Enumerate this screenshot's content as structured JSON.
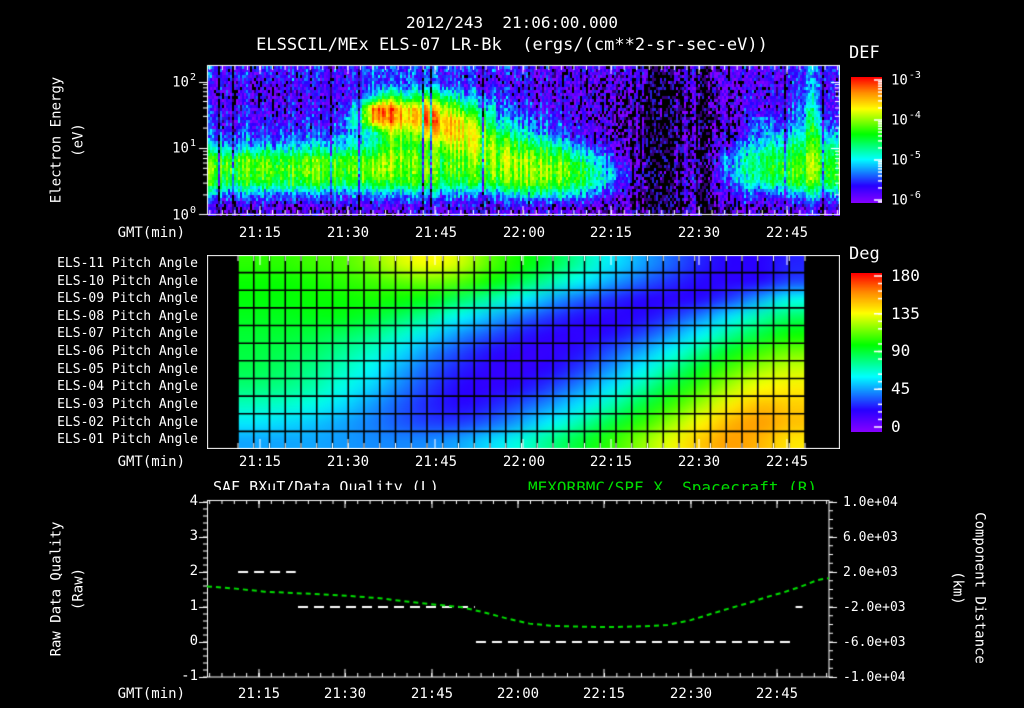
{
  "header": {
    "title_line1": "2012/243  21:06:00.000",
    "title_line2": "ELSSCIL/MEx ELS-07 LR-Bk  (ergs/(cm**2-sr-sec-eV))"
  },
  "time_axis": {
    "label": "GMT(min)",
    "tick_labels": [
      "21:15",
      "21:30",
      "21:45",
      "22:00",
      "22:15",
      "22:30",
      "22:45"
    ],
    "tick_minutes": [
      9,
      24,
      39,
      54,
      69,
      84,
      99
    ],
    "start_label": "21:06",
    "end_label": "22:54",
    "minutes_span": 108
  },
  "colors": {
    "background": "#000000",
    "foreground": "#ffffff",
    "accent_green": "#00dd00",
    "rainbow": {
      "positions": [
        0,
        0.14,
        0.35,
        0.55,
        0.75,
        0.88,
        1
      ],
      "colors": [
        "#8a00ff",
        "#2800ff",
        "#00ffff",
        "#00ff00",
        "#ffff00",
        "#ff8c00",
        "#ff0000"
      ]
    }
  },
  "chart_data": [
    {
      "type": "heatmap",
      "name": "electron-energy-spectrogram",
      "title": "ELSSCIL/MEx ELS-07 LR-Bk  (ergs/(cm**2-sr-sec-eV))",
      "xlabel": "GMT(min)",
      "ylabel_lines": [
        "Electron Energy",
        "(eV)"
      ],
      "y_scale": "log",
      "y_range_ev": [
        1,
        155
      ],
      "y_ticks": [
        {
          "base": "10",
          "exp": "2"
        },
        {
          "base": "10",
          "exp": "1"
        },
        {
          "base": "10",
          "exp": "0"
        }
      ],
      "x_tick_labels": [
        "21:15",
        "21:30",
        "21:45",
        "22:00",
        "22:15",
        "22:30",
        "22:45"
      ],
      "colorbar": {
        "label": "DEF",
        "units": "ergs/(cm**2-sr-sec-eV)",
        "log10_range": [
          -6,
          -3
        ],
        "ticks": [
          {
            "base": "10",
            "exp": "-3"
          },
          {
            "base": "10",
            "exp": "-4"
          },
          {
            "base": "10",
            "exp": "-5"
          },
          {
            "base": "10",
            "exp": "-6"
          }
        ]
      },
      "grid": {
        "time_bin_minutes": 3,
        "t0_label": "21:06",
        "energy_bins": "12 log-spaced bins, 1 eV (bottom) to 150 eV (top)",
        "columns_bottom_to_top_log10_flux": [
          [
            -5.9,
            -5.3,
            -4.4,
            -4.15,
            -4.3,
            -5.1,
            -5.5,
            -5.65,
            -5.75,
            -5.85,
            -5.75,
            -5.6
          ],
          [
            -5.95,
            -5.3,
            -4.45,
            -4.2,
            -4.3,
            -5.15,
            -5.5,
            -5.6,
            -5.7,
            -5.8,
            -5.7,
            -5.6
          ],
          [
            -5.9,
            -5.25,
            -4.4,
            -4.15,
            -4.25,
            -5.1,
            -5.45,
            -5.6,
            -5.75,
            -5.8,
            -5.75,
            -5.65
          ],
          [
            -5.9,
            -5.3,
            -4.4,
            -4.1,
            -4.25,
            -5.05,
            -5.5,
            -5.65,
            -5.7,
            -5.85,
            -5.7,
            -5.55
          ],
          [
            -5.95,
            -5.35,
            -4.45,
            -4.15,
            -4.3,
            -5.1,
            -5.4,
            -5.55,
            -5.7,
            -5.8,
            -5.75,
            -5.6
          ],
          [
            -5.9,
            -5.3,
            -4.4,
            -4.1,
            -4.25,
            -5.0,
            -5.45,
            -5.6,
            -5.75,
            -5.85,
            -5.7,
            -5.6
          ],
          [
            -5.9,
            -5.25,
            -4.35,
            -4.1,
            -4.2,
            -5.0,
            -5.4,
            -5.6,
            -5.7,
            -5.8,
            -5.7,
            -5.55
          ],
          [
            -5.9,
            -5.3,
            -4.4,
            -4.15,
            -4.25,
            -4.95,
            -5.35,
            -5.5,
            -5.65,
            -5.75,
            -5.7,
            -5.6
          ],
          [
            -5.9,
            -5.3,
            -4.4,
            -4.1,
            -4.2,
            -4.8,
            -5.0,
            -4.7,
            -4.9,
            -5.5,
            -5.6,
            -5.5
          ],
          [
            -5.9,
            -5.3,
            -4.4,
            -4.1,
            -4.2,
            -4.8,
            -5.0,
            -3.6,
            -3.3,
            -4.9,
            -5.6,
            -5.5
          ],
          [
            -5.9,
            -5.2,
            -4.3,
            -4.0,
            -3.9,
            -4.1,
            -3.9,
            -3.3,
            -3.15,
            -4.2,
            -5.3,
            -5.4
          ],
          [
            -5.9,
            -5.3,
            -4.4,
            -4.2,
            -4.2,
            -4.5,
            -4.3,
            -3.8,
            -3.8,
            -4.8,
            -5.5,
            -5.5
          ],
          [
            -5.9,
            -5.3,
            -4.4,
            -4.2,
            -4.3,
            -4.4,
            -3.8,
            -3.3,
            -3.4,
            -4.3,
            -5.4,
            -5.5
          ],
          [
            -5.9,
            -5.3,
            -4.5,
            -4.3,
            -4.3,
            -4.0,
            -3.6,
            -3.5,
            -3.9,
            -4.6,
            -5.5,
            -5.5
          ],
          [
            -5.9,
            -5.4,
            -4.5,
            -4.3,
            -4.2,
            -3.9,
            -3.7,
            -3.8,
            -4.3,
            -5.0,
            -5.6,
            -5.6
          ],
          [
            -5.9,
            -5.4,
            -4.4,
            -4.2,
            -4.0,
            -3.9,
            -3.9,
            -4.2,
            -4.8,
            -5.3,
            -5.7,
            -5.6
          ],
          [
            -5.9,
            -5.3,
            -4.3,
            -4.1,
            -4.0,
            -4.1,
            -4.4,
            -4.9,
            -5.2,
            -5.5,
            -5.7,
            -5.7
          ],
          [
            -5.9,
            -5.1,
            -4.2,
            -4.0,
            -4.0,
            -4.3,
            -4.8,
            -5.2,
            -5.5,
            -5.7,
            -5.8,
            -5.7
          ],
          [
            -5.9,
            -4.8,
            -4.1,
            -4.0,
            -4.05,
            -4.4,
            -5.0,
            -5.4,
            -5.6,
            -5.8,
            -5.8,
            -5.8
          ],
          [
            -5.9,
            -4.9,
            -4.15,
            -4.0,
            -4.1,
            -4.6,
            -5.2,
            -5.5,
            -5.7,
            -5.8,
            -5.9,
            -5.8
          ],
          [
            -6.0,
            -5.1,
            -4.3,
            -4.2,
            -4.4,
            -5.0,
            -5.5,
            -5.7,
            -5.8,
            -5.9,
            -5.9,
            -5.9
          ],
          [
            -6.0,
            -5.3,
            -4.6,
            -4.5,
            -4.8,
            -5.4,
            -5.8,
            -5.9,
            -5.9,
            -6.0,
            -6.0,
            -5.9
          ],
          [
            -6.1,
            -5.6,
            -5.0,
            -4.9,
            -5.2,
            -5.7,
            -6.0,
            -6.0,
            -6.0,
            -6.1,
            -6.0,
            -5.8
          ],
          [
            -6.1,
            -5.9,
            -5.6,
            -5.5,
            -5.8,
            -6.0,
            -6.1,
            -6.1,
            -6.1,
            -6.1,
            -6.1,
            -5.9
          ],
          [
            -6.2,
            -6.1,
            -6.0,
            -6.0,
            -6.1,
            -6.1,
            -6.2,
            -6.2,
            -6.2,
            -6.2,
            -5.9,
            -5.9
          ],
          [
            -6.5,
            -6.5,
            -6.4,
            -6.4,
            -6.5,
            -6.5,
            -6.5,
            -6.5,
            -6.5,
            -6.5,
            -6.4,
            -6.3
          ],
          [
            -6.5,
            -6.5,
            -6.5,
            -6.4,
            -6.5,
            -6.5,
            -6.5,
            -6.5,
            -6.5,
            -6.5,
            -6.4,
            -6.2
          ],
          [
            -6.1,
            -6.0,
            -5.9,
            -5.9,
            -6.0,
            -6.0,
            -6.1,
            -6.1,
            -6.1,
            -6.1,
            -6.0,
            -5.9
          ],
          [
            -6.4,
            -6.4,
            -6.3,
            -6.3,
            -6.4,
            -6.4,
            -6.4,
            -6.4,
            -6.4,
            -6.4,
            -6.3,
            -6.2
          ],
          [
            -6.1,
            -5.9,
            -5.6,
            -5.4,
            -5.3,
            -5.8,
            -6.0,
            -6.0,
            -6.0,
            -6.0,
            -5.9,
            -5.9
          ],
          [
            -6.0,
            -5.6,
            -5.0,
            -4.8,
            -4.9,
            -5.2,
            -5.7,
            -5.9,
            -5.9,
            -5.9,
            -5.9,
            -5.8
          ],
          [
            -6.0,
            -5.5,
            -4.7,
            -4.5,
            -4.6,
            -4.9,
            -5.3,
            -5.3,
            -5.7,
            -5.8,
            -5.8,
            -5.8
          ],
          [
            -5.9,
            -5.4,
            -4.5,
            -4.3,
            -4.4,
            -4.7,
            -5.1,
            -5.4,
            -5.6,
            -5.7,
            -5.7,
            -5.7
          ],
          [
            -5.9,
            -5.3,
            -4.4,
            -4.2,
            -4.3,
            -4.6,
            -5.0,
            -5.3,
            -5.5,
            -5.6,
            -5.6,
            -5.6
          ],
          [
            -5.8,
            -5.0,
            -4.2,
            -4.0,
            -4.0,
            -4.2,
            -4.4,
            -4.6,
            -4.8,
            -5.0,
            -5.2,
            -5.3
          ],
          [
            -5.9,
            -5.2,
            -4.4,
            -4.3,
            -4.4,
            -4.7,
            -5.1,
            -5.5,
            -5.7,
            -5.7,
            -5.7,
            -5.6
          ]
        ]
      }
    },
    {
      "type": "heatmap",
      "name": "pitch-angle-panel",
      "xlabel": "GMT(min)",
      "rows_top_to_bottom": [
        "ELS-11 Pitch Angle",
        "ELS-10 Pitch Angle",
        "ELS-09 Pitch Angle",
        "ELS-08 Pitch Angle",
        "ELS-07 Pitch Angle",
        "ELS-06 Pitch Angle",
        "ELS-05 Pitch Angle",
        "ELS-04 Pitch Angle",
        "ELS-03 Pitch Angle",
        "ELS-02 Pitch Angle",
        "ELS-01 Pitch Angle"
      ],
      "x_tick_labels": [
        "21:15",
        "21:30",
        "21:45",
        "22:00",
        "22:15",
        "22:30",
        "22:45"
      ],
      "colorbar": {
        "label": "Deg",
        "ticks": [
          180,
          135,
          90,
          45,
          0
        ],
        "range_deg": [
          0,
          180
        ]
      },
      "grid": {
        "time_bins": 19,
        "coverage": "21:11 to 22:48, right edge 22:48-22:54 has no data (black)",
        "deg_rows_top_to_bottom": [
          [
            105,
            105,
            108,
            110,
            118,
            130,
            135,
            128,
            110,
            100,
            90,
            75,
            60,
            50,
            40,
            30,
            25,
            25,
            30
          ],
          [
            100,
            100,
            102,
            105,
            108,
            112,
            115,
            110,
            100,
            88,
            75,
            62,
            50,
            40,
            32,
            26,
            24,
            26,
            35
          ],
          [
            98,
            98,
            100,
            100,
            102,
            100,
            95,
            85,
            75,
            62,
            50,
            40,
            32,
            26,
            24,
            26,
            35,
            50,
            65
          ],
          [
            95,
            95,
            96,
            96,
            92,
            85,
            75,
            62,
            52,
            42,
            33,
            27,
            24,
            26,
            33,
            45,
            60,
            75,
            85
          ],
          [
            92,
            92,
            90,
            86,
            80,
            70,
            58,
            46,
            37,
            29,
            24,
            23,
            27,
            35,
            48,
            62,
            78,
            90,
            100
          ],
          [
            90,
            88,
            85,
            78,
            70,
            58,
            45,
            35,
            27,
            22,
            22,
            28,
            38,
            50,
            64,
            80,
            95,
            108,
            115
          ],
          [
            88,
            85,
            80,
            72,
            62,
            50,
            38,
            29,
            23,
            22,
            26,
            35,
            48,
            62,
            78,
            95,
            110,
            122,
            128
          ],
          [
            82,
            80,
            75,
            66,
            56,
            44,
            33,
            25,
            23,
            27,
            35,
            47,
            60,
            75,
            92,
            108,
            124,
            135,
            138
          ],
          [
            72,
            70,
            66,
            58,
            48,
            38,
            30,
            26,
            30,
            38,
            48,
            60,
            74,
            90,
            106,
            122,
            138,
            148,
            145
          ],
          [
            60,
            58,
            55,
            50,
            44,
            38,
            34,
            34,
            40,
            50,
            62,
            75,
            90,
            105,
            120,
            136,
            150,
            155,
            148
          ],
          [
            50,
            50,
            50,
            48,
            46,
            45,
            46,
            50,
            58,
            68,
            80,
            92,
            105,
            118,
            132,
            146,
            155,
            150,
            140
          ]
        ]
      }
    },
    {
      "type": "line",
      "name": "quality-and-distance-plot",
      "left_title": "SAF_BXuT/Data Quality (L)",
      "right_title": "MEXORBMC/SPF X, Spacecraft (R)",
      "xlabel": "GMT(min)",
      "x_tick_labels": [
        "21:15",
        "21:30",
        "21:45",
        "22:00",
        "22:15",
        "22:30",
        "22:45"
      ],
      "left_axis": {
        "label_lines": [
          "Raw Data Quality",
          "(Raw)"
        ],
        "ticks": [
          4,
          3,
          2,
          1,
          0,
          -1
        ],
        "range": [
          -1,
          4
        ]
      },
      "right_axis": {
        "label_lines": [
          "Component Distance",
          "(km)"
        ],
        "tick_labels": [
          "1.0e+04",
          "6.0e+03",
          "2.0e+03",
          "-2.0e+03",
          "-6.0e+03",
          "-1.0e+04"
        ],
        "range": [
          -10000,
          10000
        ]
      },
      "series": [
        {
          "name": "SAF_BXuT/Data Quality",
          "axis": "left",
          "color": "#ffffff",
          "linestyle": "dashed",
          "segments": [
            {
              "value": 2,
              "t_min": [
                5.4,
                15.4
              ]
            },
            {
              "value": 1,
              "t_min": [
                15.8,
                46.5
              ]
            },
            {
              "value": 0,
              "t_min": [
                46.7,
                102.2
              ]
            },
            {
              "value": 1,
              "t_min": [
                102.2,
                103.4
              ]
            }
          ]
        },
        {
          "name": "MEXORBMC/SPF X Spacecraft",
          "axis": "right",
          "color": "#00dd00",
          "linestyle": "dashed",
          "points_t_km": [
            [
              0,
              350
            ],
            [
              5,
              100
            ],
            [
              10,
              -250
            ],
            [
              15,
              -400
            ],
            [
              20,
              -550
            ],
            [
              25,
              -750
            ],
            [
              30,
              -1000
            ],
            [
              35,
              -1400
            ],
            [
              40,
              -1750
            ],
            [
              44,
              -2000
            ],
            [
              48,
              -2600
            ],
            [
              52,
              -3300
            ],
            [
              56,
              -3900
            ],
            [
              60,
              -4150
            ],
            [
              64,
              -4230
            ],
            [
              68,
              -4290
            ],
            [
              72,
              -4270
            ],
            [
              76,
              -4200
            ],
            [
              80,
              -4050
            ],
            [
              84,
              -3500
            ],
            [
              88,
              -2700
            ],
            [
              91,
              -2100
            ],
            [
              94,
              -1550
            ],
            [
              97,
              -900
            ],
            [
              100,
              -350
            ],
            [
              103,
              300
            ],
            [
              106,
              1080
            ],
            [
              108,
              1300
            ]
          ]
        }
      ]
    }
  ]
}
